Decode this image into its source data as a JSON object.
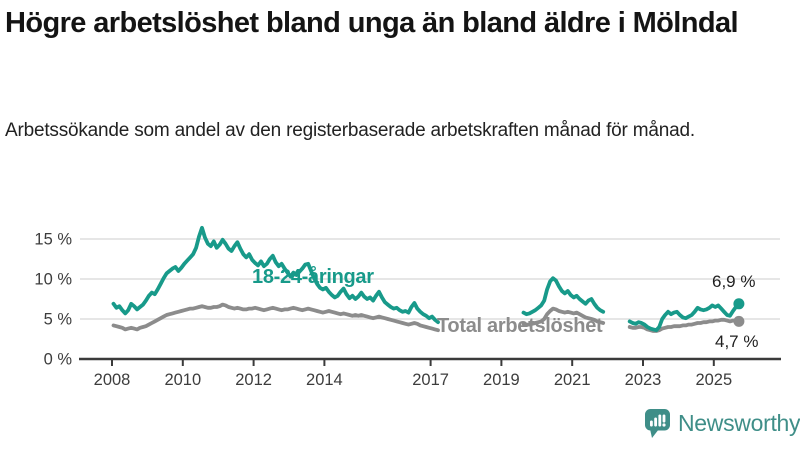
{
  "header": {
    "title": "Högre arbetslöshet bland unga än bland äldre i Mölndal",
    "subtitle": "Arbetssökande som andel av den registerbaserade arbetskraften månad för månad."
  },
  "footer": {
    "brand": "Newsworthy"
  },
  "colors": {
    "teal": "#189a8a",
    "gray": "#8c8c8c",
    "axis": "#3b3b3b",
    "grid": "#dedede",
    "tick_text": "#3d3d3d",
    "logo_teal": "#3f8e88"
  },
  "chart_data": {
    "type": "line",
    "title": "Högre arbetslöshet bland unga än bland äldre i Mölndal",
    "subtitle": "Arbetssökande som andel av den registerbaserade arbetskraften månad för månad.",
    "unit": "%",
    "grid": true,
    "ylim": [
      0,
      17.5
    ],
    "xlim": [
      2007.1,
      2026.0
    ],
    "yticks": [
      0,
      5,
      10,
      15
    ],
    "ytick_labels": [
      "0 %",
      "5 %",
      "10 %",
      "15 %"
    ],
    "xticks": [
      2008,
      2010,
      2012,
      2014,
      2017,
      2019,
      2021,
      2023,
      2025
    ],
    "legend_position": "inline-labels",
    "series": [
      {
        "name": "Total arbetslöshet",
        "color": "#8c8c8c",
        "end_label": "4,7 %",
        "end_value": 4.7,
        "segments": [
          {
            "start": "2008-01",
            "values": [
              4.2,
              4.1,
              4.0,
              3.9,
              3.7,
              3.8,
              3.9,
              3.8,
              3.7,
              3.9,
              4.0,
              4.1,
              4.3,
              4.5,
              4.7,
              4.9,
              5.1,
              5.3,
              5.5,
              5.6,
              5.7,
              5.8,
              5.9,
              6.0,
              6.1,
              6.2,
              6.3,
              6.3,
              6.4,
              6.5,
              6.6,
              6.5,
              6.4,
              6.4,
              6.5,
              6.5,
              6.6,
              6.8,
              6.7,
              6.5,
              6.4,
              6.3,
              6.4,
              6.3,
              6.2,
              6.2,
              6.3,
              6.3,
              6.4,
              6.3,
              6.2,
              6.1,
              6.2,
              6.3,
              6.4,
              6.3,
              6.2,
              6.1,
              6.2,
              6.2,
              6.3,
              6.4,
              6.3,
              6.2,
              6.1,
              6.2,
              6.3,
              6.2,
              6.1,
              6.0,
              5.9,
              5.8,
              5.9,
              6.0,
              5.9,
              5.8,
              5.7,
              5.6,
              5.7,
              5.6,
              5.5,
              5.4,
              5.5,
              5.4,
              5.5,
              5.4,
              5.3,
              5.2,
              5.1,
              5.2,
              5.3,
              5.2,
              5.1,
              5.0,
              4.9,
              4.8,
              4.7,
              4.6,
              4.5,
              4.4,
              4.3,
              4.4,
              4.5,
              4.4,
              4.2,
              4.1,
              4.0,
              3.9,
              3.8,
              3.7,
              3.6
            ]
          },
          {
            "start": "2019-08",
            "values": [
              4.4,
              4.3,
              4.3,
              4.4,
              4.5,
              4.6,
              4.7,
              5.0,
              5.6,
              6.0,
              6.3,
              6.2,
              6.0,
              5.9,
              5.8,
              5.9,
              5.8,
              5.7,
              5.8,
              5.6,
              5.4,
              5.2,
              5.1,
              5.0,
              4.9,
              4.7,
              4.6,
              4.5
            ]
          },
          {
            "start": "2022-08",
            "values": [
              4.0,
              3.9,
              3.9,
              4.0,
              4.0,
              3.9,
              3.7,
              3.6,
              3.5,
              3.5,
              3.6,
              3.8,
              3.9,
              4.0,
              4.0,
              4.1,
              4.1,
              4.1,
              4.2,
              4.2,
              4.3,
              4.3,
              4.4,
              4.5,
              4.5,
              4.6,
              4.6,
              4.7,
              4.7,
              4.8,
              4.8,
              4.9,
              4.9,
              4.8,
              4.7,
              4.8,
              4.8,
              4.7
            ]
          }
        ]
      },
      {
        "name": "18-24-åringar",
        "color": "#189a8a",
        "end_label": "6,9 %",
        "end_value": 6.9,
        "segments": [
          {
            "start": "2008-01",
            "values": [
              6.9,
              6.4,
              6.6,
              6.1,
              5.7,
              6.1,
              6.9,
              6.6,
              6.2,
              6.5,
              6.8,
              7.3,
              7.9,
              8.3,
              8.1,
              8.7,
              9.4,
              10.1,
              10.7,
              11.0,
              11.3,
              11.5,
              11.0,
              11.4,
              11.9,
              12.3,
              12.7,
              13.1,
              13.9,
              15.3,
              16.4,
              15.2,
              14.4,
              14.1,
              14.7,
              13.9,
              14.3,
              14.9,
              14.4,
              13.8,
              13.5,
              14.1,
              14.6,
              13.8,
              13.1,
              12.7,
              13.1,
              12.4,
              12.0,
              11.7,
              12.2,
              11.6,
              11.9,
              12.5,
              12.9,
              12.1,
              11.6,
              11.9,
              11.3,
              10.8,
              10.3,
              10.8,
              10.5,
              10.9,
              11.3,
              11.8,
              11.9,
              11.0,
              10.1,
              9.4,
              8.9,
              8.7,
              8.9,
              8.4,
              8.0,
              7.7,
              7.9,
              8.4,
              8.8,
              8.1,
              7.6,
              7.9,
              7.5,
              7.8,
              8.3,
              7.8,
              7.5,
              7.7,
              7.3,
              7.9,
              8.4,
              7.7,
              7.1,
              6.8,
              6.5,
              6.3,
              6.4,
              6.1,
              5.9,
              6.0,
              5.8,
              6.5,
              7.0,
              6.3,
              5.9,
              5.6,
              5.4,
              5.1,
              5.3,
              4.9,
              4.6
            ]
          },
          {
            "start": "2019-08",
            "values": [
              5.8,
              5.6,
              5.7,
              5.9,
              6.1,
              6.4,
              6.7,
              7.3,
              8.7,
              9.7,
              10.1,
              9.8,
              9.1,
              8.5,
              8.2,
              8.5,
              8.0,
              7.7,
              7.9,
              7.5,
              7.2,
              6.9,
              7.3,
              7.5,
              6.9,
              6.4,
              6.1,
              5.9
            ]
          },
          {
            "start": "2022-08",
            "values": [
              4.7,
              4.5,
              4.4,
              4.6,
              4.5,
              4.3,
              4.0,
              3.8,
              3.7,
              3.6,
              4.0,
              5.0,
              5.5,
              5.9,
              5.6,
              5.8,
              5.9,
              5.5,
              5.2,
              5.1,
              5.3,
              5.5,
              5.9,
              6.4,
              6.2,
              6.1,
              6.2,
              6.4,
              6.7,
              6.5,
              6.7,
              6.3,
              5.9,
              5.5,
              5.4,
              6.0,
              6.5,
              6.9
            ]
          }
        ]
      }
    ]
  }
}
